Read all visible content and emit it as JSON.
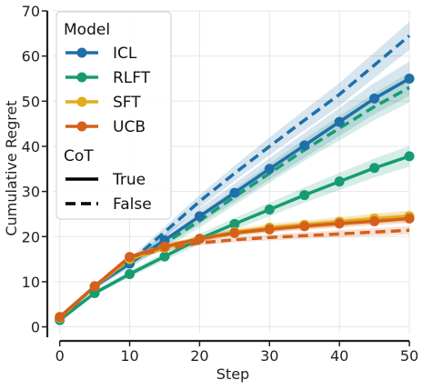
{
  "chart_data": {
    "type": "line",
    "xlabel": "Step",
    "ylabel": "Cumulative Regret",
    "xlim": [
      -1,
      50
    ],
    "ylim": [
      -1.5,
      70
    ],
    "xticks": [
      0,
      10,
      20,
      30,
      40,
      50
    ],
    "yticks": [
      0,
      10,
      20,
      30,
      40,
      50,
      60,
      70
    ],
    "grid": true,
    "legend_position": "top-left",
    "legend": {
      "model_title": "Model",
      "models": [
        {
          "label": "ICL",
          "color": "#1f6fa8"
        },
        {
          "label": "RLFT",
          "color": "#169b73"
        },
        {
          "label": "SFT",
          "color": "#e0ad1c"
        },
        {
          "label": "UCB",
          "color": "#d4601c"
        }
      ],
      "cot_title": "CoT",
      "styles": [
        {
          "label": "True",
          "dash": "solid"
        },
        {
          "label": "False",
          "dash": "dashed"
        }
      ]
    },
    "series": [
      {
        "model": "ICL",
        "cot": "True",
        "color": "#1f6fa8",
        "dashed": false,
        "x": [
          0,
          5,
          10,
          15,
          20,
          25,
          30,
          35,
          40,
          45,
          50
        ],
        "y": [
          1.8,
          9.0,
          14.0,
          19.2,
          24.5,
          29.7,
          35.0,
          40.2,
          45.4,
          50.6,
          55.0
        ],
        "band": 3.5,
        "markers": true
      },
      {
        "model": "ICL",
        "cot": "False",
        "color": "#1f6fa8",
        "dashed": true,
        "x": [
          0,
          5,
          10,
          15,
          20,
          25,
          30,
          35,
          40,
          45,
          50
        ],
        "y": [
          1.8,
          9.0,
          14.3,
          21.0,
          27.8,
          34.0,
          40.0,
          45.8,
          51.5,
          58.0,
          64.5
        ],
        "band": 2.8,
        "markers": false
      },
      {
        "model": "RLFT",
        "cot": "True",
        "color": "#169b73",
        "dashed": false,
        "x": [
          0,
          5,
          10,
          15,
          20,
          25,
          30,
          35,
          40,
          45,
          50
        ],
        "y": [
          1.5,
          7.5,
          11.7,
          15.6,
          19.5,
          22.8,
          26.0,
          29.2,
          32.2,
          35.2,
          37.8
        ],
        "band": 2.0,
        "markers": true
      },
      {
        "model": "RLFT",
        "cot": "False",
        "color": "#169b73",
        "dashed": true,
        "x": [
          0,
          5,
          10,
          15,
          20,
          25,
          30,
          35,
          40,
          45,
          50
        ],
        "y": [
          1.8,
          9.0,
          14.5,
          18.5,
          23.5,
          28.8,
          34.0,
          39.2,
          44.0,
          48.8,
          53.0
        ],
        "band": 3.0,
        "markers": false
      },
      {
        "model": "SFT",
        "cot": "True",
        "color": "#e0ad1c",
        "dashed": false,
        "x": [
          0,
          5,
          10,
          15,
          20,
          25,
          30,
          35,
          40,
          45,
          50
        ],
        "y": [
          2.0,
          9.0,
          15.0,
          17.5,
          19.5,
          21.0,
          22.0,
          22.6,
          23.3,
          24.0,
          24.5
        ],
        "band": 1.0,
        "markers": true
      },
      {
        "model": "SFT",
        "cot": "False",
        "color": "#e0ad1c",
        "dashed": true,
        "x": [
          0,
          5,
          10,
          15,
          20,
          25,
          30,
          35,
          40,
          45,
          50
        ],
        "y": [
          2.0,
          9.0,
          15.5,
          18.0,
          19.5,
          20.8,
          21.8,
          22.5,
          23.2,
          23.9,
          24.5
        ],
        "band": 0.8,
        "markers": false
      },
      {
        "model": "UCB",
        "cot": "True",
        "color": "#d4601c",
        "dashed": false,
        "x": [
          0,
          5,
          10,
          15,
          20,
          25,
          30,
          35,
          40,
          45,
          50
        ],
        "y": [
          2.2,
          9.0,
          15.5,
          17.8,
          19.5,
          20.8,
          21.6,
          22.3,
          22.9,
          23.4,
          24.0
        ],
        "band": 0.7,
        "markers": true
      },
      {
        "model": "UCB",
        "cot": "False",
        "color": "#d4601c",
        "dashed": true,
        "x": [
          0,
          5,
          10,
          15,
          20,
          25,
          30,
          35,
          40,
          45,
          50
        ],
        "y": [
          2.0,
          9.0,
          15.5,
          17.2,
          18.6,
          19.3,
          19.8,
          20.2,
          20.6,
          21.0,
          21.4
        ],
        "band": 0.6,
        "markers": false
      }
    ]
  }
}
